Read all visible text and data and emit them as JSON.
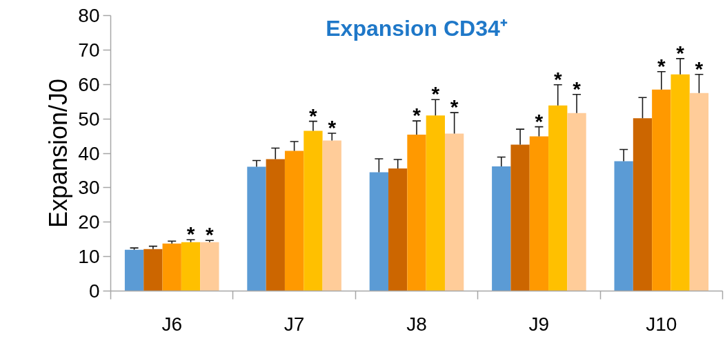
{
  "chart_data": {
    "type": "bar",
    "title": "Expansion CD34⁺",
    "ylabel": "Expansion/J0",
    "categories": [
      "J6",
      "J7",
      "J8",
      "J9",
      "J10"
    ],
    "ylim": [
      0,
      80
    ],
    "yticks": [
      0,
      10,
      20,
      30,
      40,
      50,
      60,
      70,
      80
    ],
    "grid": false,
    "series": [
      {
        "color": "#5b9bd5",
        "values": [
          12.0,
          36.1,
          34.5,
          36.2,
          37.7
        ],
        "errors": [
          [
            12.0,
            12.5
          ],
          [
            36.1,
            37.9
          ],
          [
            34.5,
            38.4
          ],
          [
            36.2,
            38.9
          ],
          [
            37.7,
            41.1
          ]
        ]
      },
      {
        "color": "#cc6600",
        "values": [
          12.2,
          38.3,
          35.6,
          42.5,
          50.2
        ],
        "errors": [
          [
            12.2,
            13.0
          ],
          [
            38.3,
            41.5
          ],
          [
            35.6,
            38.2
          ],
          [
            42.5,
            47.0
          ],
          [
            50.2,
            56.2
          ]
        ]
      },
      {
        "color": "#ff9900",
        "values": [
          13.8,
          40.7,
          45.4,
          44.9,
          58.5
        ],
        "errors": [
          [
            13.8,
            14.5
          ],
          [
            40.7,
            43.4
          ],
          [
            45.4,
            49.4
          ],
          [
            44.9,
            47.7
          ],
          [
            58.5,
            63.7
          ]
        ],
        "value_labels": [
          null,
          null,
          "*",
          "*",
          "*"
        ]
      },
      {
        "color": "#ffc000",
        "values": [
          14.2,
          46.5,
          51.0,
          53.9,
          62.9
        ],
        "errors": [
          [
            14.2,
            14.9
          ],
          [
            46.5,
            49.3
          ],
          [
            51.0,
            55.6
          ],
          [
            53.9,
            59.9
          ],
          [
            62.9,
            67.5
          ]
        ],
        "value_labels": [
          "*",
          "*",
          "*",
          "*",
          "*"
        ]
      },
      {
        "color": "#ffcc99",
        "values": [
          14.2,
          43.7,
          45.7,
          51.7,
          57.5
        ],
        "errors": [
          [
            14.2,
            14.7
          ],
          [
            43.7,
            45.8
          ],
          [
            45.7,
            51.8
          ],
          [
            51.7,
            57.1
          ],
          [
            57.5,
            62.9
          ]
        ],
        "value_labels": [
          "*",
          "*",
          "*",
          "*",
          "*"
        ]
      }
    ]
  }
}
